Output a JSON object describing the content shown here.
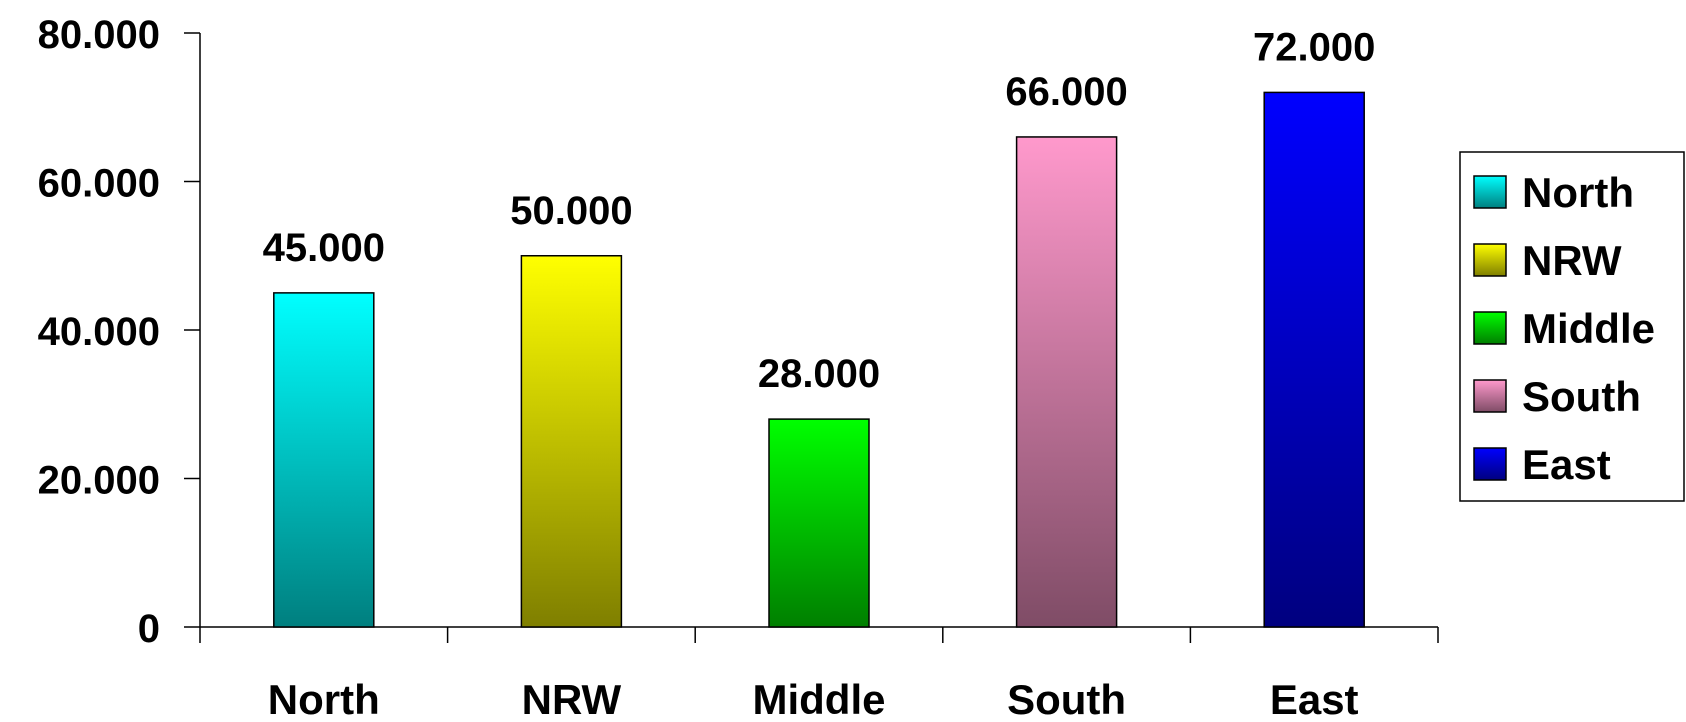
{
  "chart_data": {
    "type": "bar",
    "categories": [
      "North",
      "NRW",
      "Middle",
      "South",
      "East"
    ],
    "values": [
      45000,
      50000,
      28000,
      66000,
      72000
    ],
    "value_labels": [
      "45.000",
      "50.000",
      "28.000",
      "66.000",
      "72.000"
    ],
    "ylim": [
      0,
      80000
    ],
    "yticks": [
      0,
      20000,
      40000,
      60000,
      80000
    ],
    "ytick_labels": [
      "0",
      "20.000",
      "40.000",
      "60.000",
      "80.000"
    ],
    "title": "",
    "xlabel": "",
    "ylabel": "",
    "grid": false,
    "legend": {
      "position": "right",
      "entries": [
        "North",
        "NRW",
        "Middle",
        "South",
        "East"
      ]
    },
    "colors": [
      {
        "top": "#00ffff",
        "bottom": "#007f7f"
      },
      {
        "top": "#ffff00",
        "bottom": "#7f7f00"
      },
      {
        "top": "#00ff00",
        "bottom": "#007f00"
      },
      {
        "top": "#ff99cc",
        "bottom": "#7f4c66"
      },
      {
        "top": "#0000ff",
        "bottom": "#00007f"
      }
    ]
  }
}
